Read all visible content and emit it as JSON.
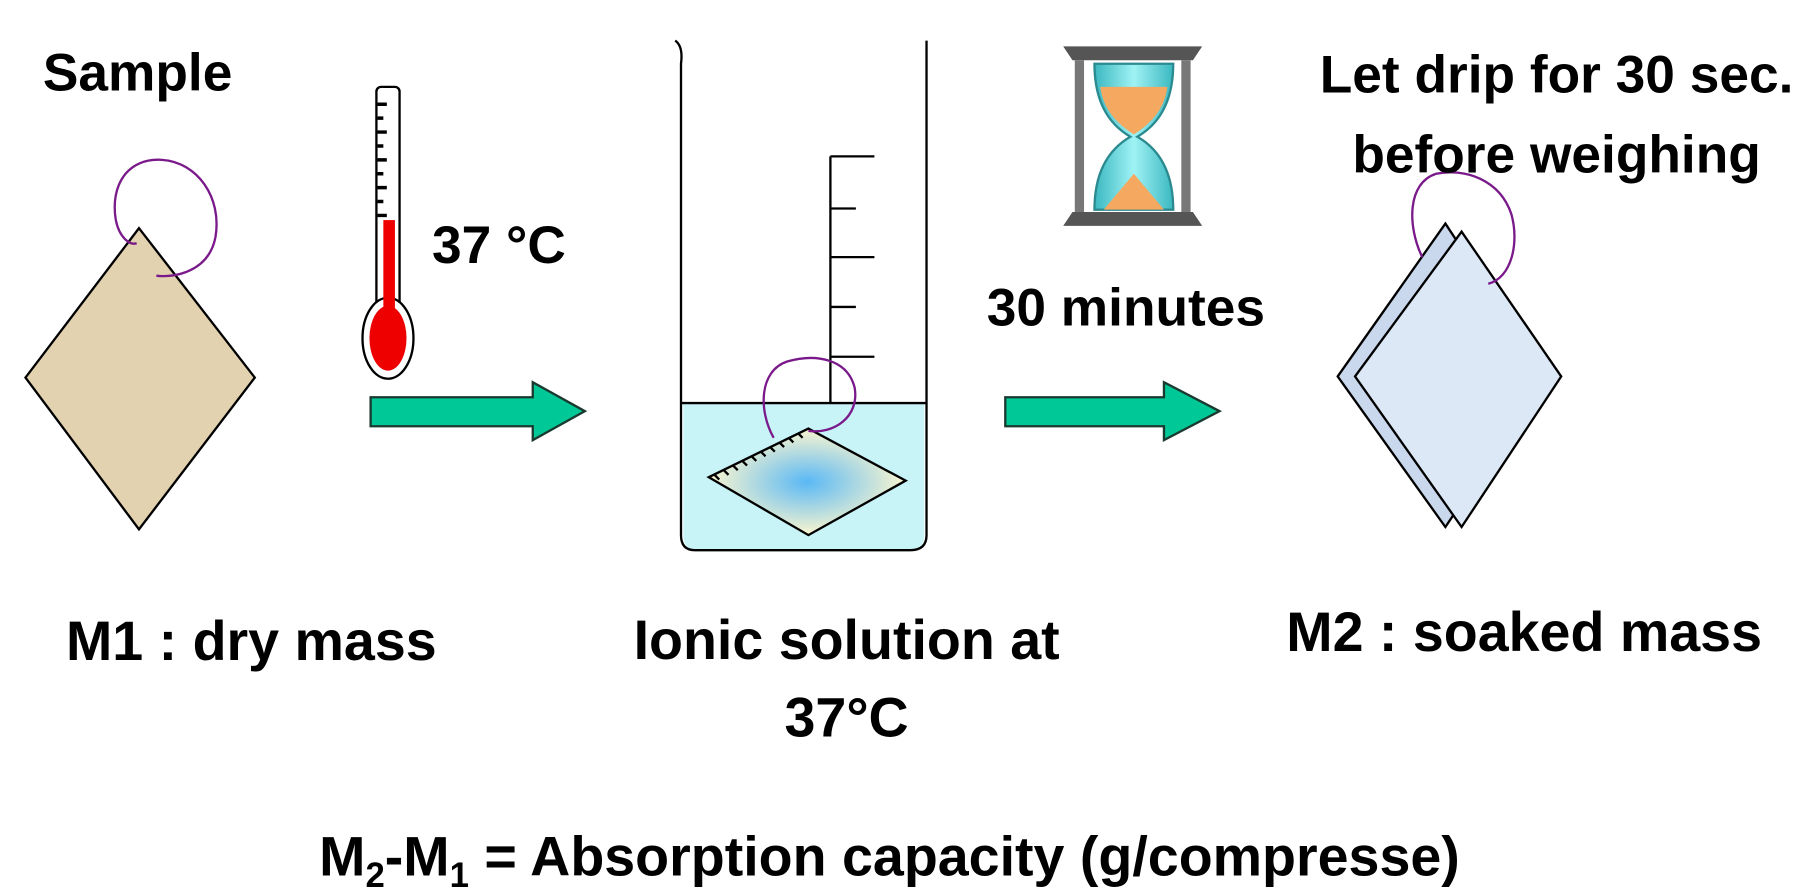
{
  "labels": {
    "sample": "Sample",
    "temperature": "37 °C",
    "duration": "30 minutes",
    "drip_line1": "Let drip for 30 sec.",
    "drip_line2": "before weighing",
    "m1": "M1 : dry mass",
    "solution_line1": "Ionic solution at",
    "solution_line2": "37°C",
    "m2": "M2 : soaked mass"
  },
  "formula": {
    "parts": [
      "M",
      "2",
      "-M",
      "1",
      " = Absorption capacity (g/compresse)"
    ]
  }
}
